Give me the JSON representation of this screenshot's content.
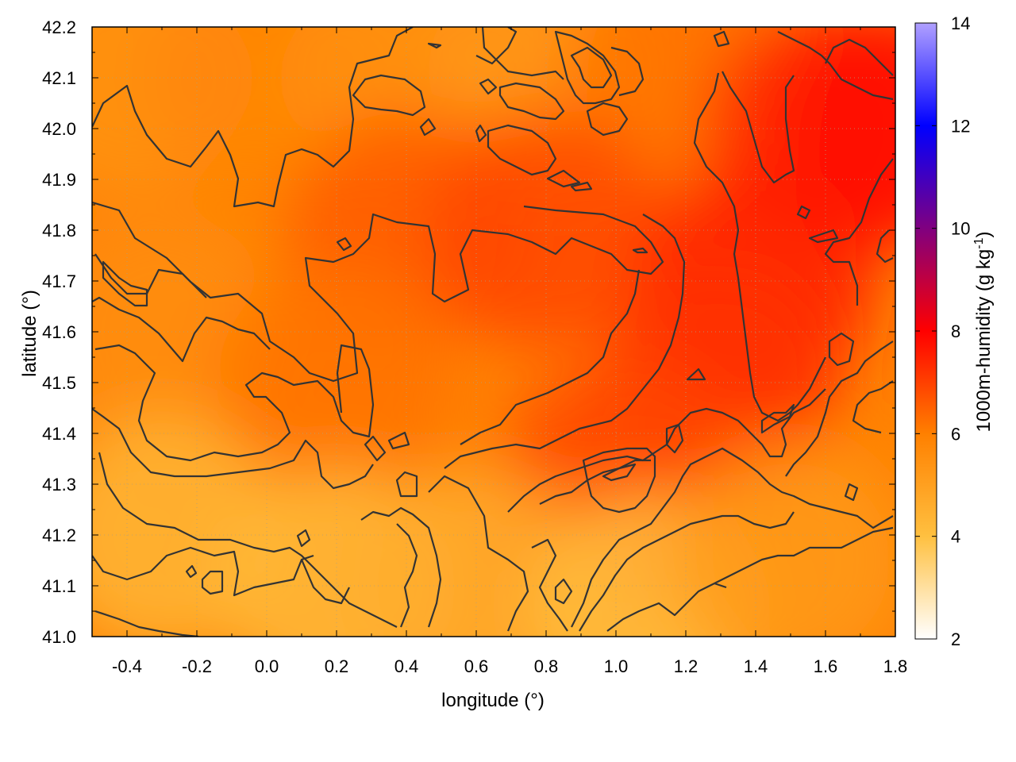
{
  "chart_data": {
    "type": "heatmap",
    "xlabel": "longitude (°)",
    "ylabel": "latitude (°)",
    "colorbar_label": "1000m-humidity (g kg",
    "colorbar_label_exp": "-1",
    "colorbar_label_close": ")",
    "xlim": [
      -0.5,
      1.8
    ],
    "ylim": [
      41.0,
      42.2
    ],
    "x_ticks": [
      -0.4,
      -0.2,
      0.0,
      0.2,
      0.4,
      0.6,
      0.8,
      1.0,
      1.2,
      1.4,
      1.6,
      1.8
    ],
    "x_tick_labels": [
      "-0.4",
      "-0.2",
      "0.0",
      "0.2",
      "0.4",
      "0.6",
      "0.8",
      "1.0",
      "1.2",
      "1.4",
      "1.6",
      "1.8"
    ],
    "y_ticks": [
      41.0,
      41.1,
      41.2,
      41.3,
      41.4,
      41.5,
      41.6,
      41.7,
      41.8,
      41.9,
      42.0,
      42.1,
      42.2
    ],
    "y_tick_labels": [
      "41.0",
      "41.1",
      "41.2",
      "41.3",
      "41.4",
      "41.5",
      "41.6",
      "41.7",
      "41.8",
      "41.9",
      "42.0",
      "42.1",
      "42.2"
    ],
    "colorbar_range": [
      2,
      14
    ],
    "colorbar_ticks": [
      2,
      4,
      6,
      8,
      10,
      12,
      14
    ],
    "colorbar_tick_labels": [
      "2",
      "4",
      "6",
      "8",
      "10",
      "12",
      "14"
    ],
    "colormap": [
      {
        "value": 2,
        "color": "#ffffff"
      },
      {
        "value": 4,
        "color": "#ffc040"
      },
      {
        "value": 6,
        "color": "#ff8000"
      },
      {
        "value": 8,
        "color": "#ff0000"
      },
      {
        "value": 10,
        "color": "#800080"
      },
      {
        "value": 12,
        "color": "#0000ff"
      },
      {
        "value": 14,
        "color": "#b0a0ff"
      }
    ],
    "grid": true,
    "contours": true,
    "humidity_field_samples": [
      {
        "lon": -0.4,
        "lat": 42.1,
        "value": 5.4
      },
      {
        "lon": 0.0,
        "lat": 42.1,
        "value": 5.8
      },
      {
        "lon": 0.4,
        "lat": 42.1,
        "value": 5.5
      },
      {
        "lon": 0.8,
        "lat": 42.1,
        "value": 5.3
      },
      {
        "lon": 1.2,
        "lat": 42.1,
        "value": 6.2
      },
      {
        "lon": 1.6,
        "lat": 42.0,
        "value": 7.4
      },
      {
        "lon": 1.8,
        "lat": 42.0,
        "value": 7.8
      },
      {
        "lon": 0.4,
        "lat": 41.8,
        "value": 6.6
      },
      {
        "lon": 0.8,
        "lat": 41.8,
        "value": 6.9
      },
      {
        "lon": 1.4,
        "lat": 41.7,
        "value": 7.6
      },
      {
        "lon": 1.3,
        "lat": 41.5,
        "value": 7.2
      },
      {
        "lon": -0.3,
        "lat": 41.6,
        "value": 5.6
      },
      {
        "lon": 0.2,
        "lat": 41.5,
        "value": 6.2
      },
      {
        "lon": 1.0,
        "lat": 41.3,
        "value": 6.9
      },
      {
        "lon": -0.3,
        "lat": 41.2,
        "value": 4.3
      },
      {
        "lon": 0.2,
        "lat": 41.1,
        "value": 4.2
      },
      {
        "lon": 0.6,
        "lat": 41.1,
        "value": 4.6
      },
      {
        "lon": 1.1,
        "lat": 41.05,
        "value": 4.0
      },
      {
        "lon": 1.5,
        "lat": 41.15,
        "value": 5.2
      }
    ]
  }
}
